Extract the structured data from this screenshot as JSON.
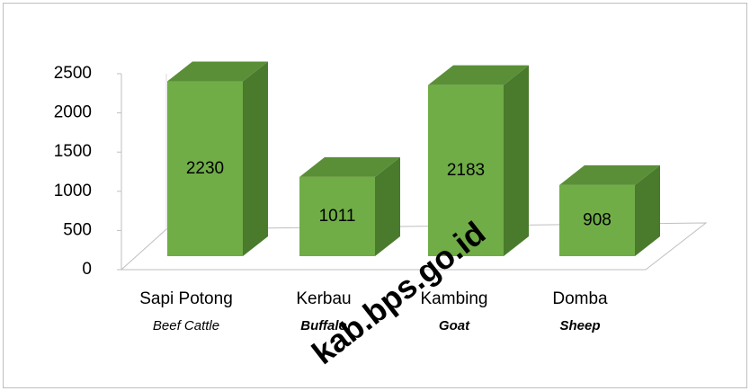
{
  "chart_data": {
    "type": "bar3d",
    "categories": [
      "Sapi Potong",
      "Kerbau",
      "Kambing",
      "Domba"
    ],
    "category_translations": [
      "Beef Cattle",
      "Buffalo",
      "Goat",
      "Sheep"
    ],
    "values": [
      2230,
      1011,
      2183,
      908
    ],
    "color": "#70ad47",
    "ylim": [
      0,
      2500
    ],
    "yticks": [
      0,
      500,
      1000,
      1500,
      2000,
      2500
    ],
    "watermark": "kab.bps.go.id"
  }
}
